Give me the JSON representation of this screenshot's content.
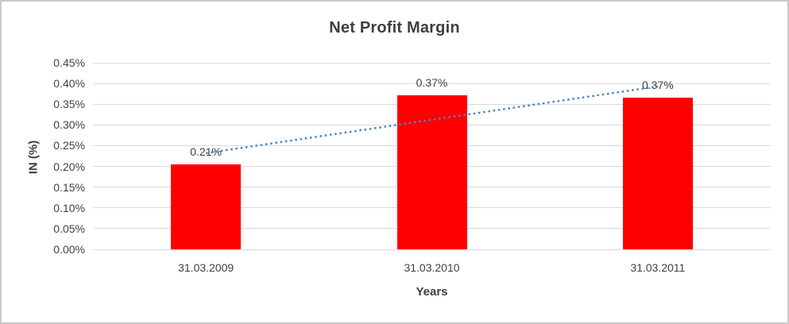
{
  "chart": {
    "title": "Net Profit Margin",
    "ylabel": "IN (%)",
    "xlabel": "Years"
  },
  "chart_data": {
    "type": "bar",
    "title": "Net Profit Margin",
    "xlabel": "Years",
    "ylabel": "IN (%)",
    "categories": [
      "31.03.2009",
      "31.03.2010",
      "31.03.2011"
    ],
    "values": [
      0.205,
      0.372,
      0.366
    ],
    "data_labels": [
      "0.21%",
      "0.37%",
      "0.37%"
    ],
    "y_axis": {
      "min": 0,
      "max": 0.45,
      "step": 0.05,
      "ticks": [
        "0.45%",
        "0.40%",
        "0.35%",
        "0.30%",
        "0.25%",
        "0.20%",
        "0.15%",
        "0.10%",
        "0.05%",
        "0.00%"
      ]
    },
    "grid": true,
    "legend": false,
    "bar_color": "#ff0000",
    "label_color": "#404040",
    "gridline_color": "#d9d9d9",
    "trendline": {
      "type": "linear",
      "style": "dotted",
      "color": "#4a86c8",
      "start_value": 0.232,
      "end_value": 0.393
    }
  }
}
